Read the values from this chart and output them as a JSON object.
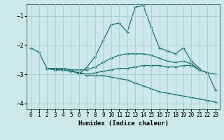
{
  "xlabel": "Humidex (Indice chaleur)",
  "background_color": "#cce8ea",
  "grid_color": "#aacccc",
  "line_color": "#1a7070",
  "xlim": [
    -0.5,
    23.5
  ],
  "ylim": [
    -4.2,
    -0.6
  ],
  "yticks": [
    -4,
    -3,
    -2,
    -1
  ],
  "xticks": [
    0,
    1,
    2,
    3,
    4,
    5,
    6,
    7,
    8,
    9,
    10,
    11,
    12,
    13,
    14,
    15,
    16,
    17,
    18,
    19,
    20,
    21,
    22,
    23
  ],
  "series": [
    {
      "x": [
        0,
        1,
        2,
        3,
        4,
        5,
        6,
        7,
        8,
        9,
        10,
        11,
        12,
        13,
        14,
        15,
        16,
        17,
        18,
        19,
        20,
        21
      ],
      "y": [
        -2.1,
        -2.25,
        -2.8,
        -2.8,
        -2.8,
        -2.85,
        -3.0,
        -2.75,
        -2.4,
        -1.85,
        -1.3,
        -1.25,
        -1.55,
        -0.7,
        -0.65,
        -1.4,
        -2.1,
        -2.2,
        -2.3,
        -2.1,
        -2.55,
        -2.8
      ]
    },
    {
      "x": [
        2,
        3,
        4,
        5,
        6,
        7,
        8,
        9,
        10,
        11,
        12,
        13,
        14,
        15,
        16,
        17,
        18,
        19,
        20,
        21,
        22,
        23
      ],
      "y": [
        -2.8,
        -2.8,
        -2.8,
        -2.85,
        -2.85,
        -2.85,
        -2.75,
        -2.6,
        -2.45,
        -2.35,
        -2.3,
        -2.3,
        -2.3,
        -2.35,
        -2.45,
        -2.55,
        -2.6,
        -2.55,
        -2.65,
        -2.85,
        -2.95,
        -3.55
      ]
    },
    {
      "x": [
        2,
        3,
        4,
        5,
        6,
        7,
        8,
        9,
        10,
        11,
        12,
        13,
        14,
        15,
        16,
        17,
        18,
        19,
        20,
        21,
        22,
        23
      ],
      "y": [
        -2.8,
        -2.85,
        -2.85,
        -2.9,
        -2.95,
        -3.0,
        -2.95,
        -2.9,
        -2.85,
        -2.8,
        -2.8,
        -2.75,
        -2.7,
        -2.7,
        -2.7,
        -2.75,
        -2.75,
        -2.7,
        -2.7,
        -2.85,
        -2.95,
        -3.0
      ]
    },
    {
      "x": [
        2,
        3,
        4,
        5,
        6,
        7,
        8,
        9,
        10,
        11,
        12,
        13,
        14,
        15,
        16,
        17,
        18,
        19,
        20,
        21,
        22,
        23
      ],
      "y": [
        -2.8,
        -2.85,
        -2.85,
        -2.9,
        -2.95,
        -3.05,
        -3.05,
        -3.05,
        -3.1,
        -3.15,
        -3.2,
        -3.3,
        -3.4,
        -3.5,
        -3.6,
        -3.65,
        -3.7,
        -3.75,
        -3.8,
        -3.85,
        -3.9,
        -3.95
      ]
    }
  ]
}
